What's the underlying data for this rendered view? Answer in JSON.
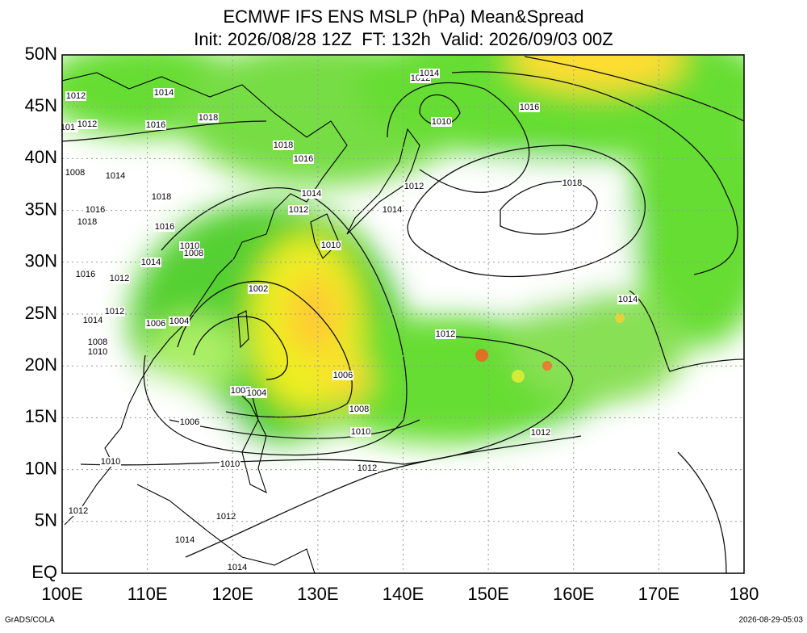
{
  "title": "ECMWF IFS ENS MSLP (hPa) Mean&Spread",
  "subtitle": "Init: 2026/08/28 12Z  FT: 132h  Valid: 2026/09/03 00Z",
  "xticks": [
    {
      "value": 100,
      "label": "100E"
    },
    {
      "value": 110,
      "label": "110E"
    },
    {
      "value": 120,
      "label": "120E"
    },
    {
      "value": 130,
      "label": "130E"
    },
    {
      "value": 140,
      "label": "140E"
    },
    {
      "value": 150,
      "label": "150E"
    },
    {
      "value": 160,
      "label": "160E"
    },
    {
      "value": 170,
      "label": "170E"
    },
    180
  ],
  "yticks": [
    {
      "value": 50,
      "label": "50N"
    },
    {
      "value": 45,
      "label": "45N"
    },
    {
      "value": 40,
      "label": "40N"
    },
    {
      "value": 35,
      "label": "35N"
    },
    {
      "value": 30,
      "label": "30N"
    },
    {
      "value": 25,
      "label": "25N"
    },
    {
      "value": 20,
      "label": "20N"
    },
    {
      "value": 15,
      "label": "15N"
    },
    {
      "value": 10,
      "label": "10N"
    },
    {
      "value": 5,
      "label": "5N"
    },
    {
      "value": 0,
      "label": "EQ"
    }
  ],
  "contour_labels": [
    "1012",
    "1014",
    "101",
    "1012",
    "1016",
    "1018",
    "1018",
    "1016",
    "1008",
    "1014",
    "1014",
    "1012",
    "1018",
    "1016",
    "1018",
    "1012",
    "1014",
    "1016",
    "1010",
    "1008",
    "1010",
    "1014",
    "1016",
    "1012",
    "1002",
    "1012",
    "1014",
    "1006",
    "1004",
    "1008",
    "1010",
    "1012",
    "1014",
    "1006",
    "1008",
    "1004",
    "1008",
    "1006",
    "1010",
    "1012",
    "1010",
    "1010",
    "1012",
    "1012",
    "1012",
    "1014",
    "1014",
    "1012",
    "1014",
    "1010",
    "1016",
    "1018"
  ],
  "credit": "GrADS/COLA",
  "timestamp": "2026-08-29-05:03"
}
